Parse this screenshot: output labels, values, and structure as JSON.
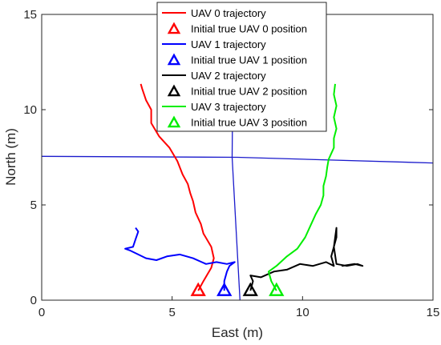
{
  "chart_data": {
    "type": "line",
    "xlabel": "East (m)",
    "ylabel": "North (m)",
    "xlim": [
      0,
      15
    ],
    "ylim": [
      0,
      15
    ],
    "x_ticks": [
      "0",
      "5",
      "10",
      "15"
    ],
    "y_ticks": [
      "0",
      "5",
      "10",
      "15"
    ],
    "legend_position": "top-center",
    "colors": {
      "uav0": "#ff0000",
      "uav1": "#0000ff",
      "uav2": "#000000",
      "uav3": "#00ee00",
      "boundary": "#1a1acc"
    },
    "legend": [
      "UAV 0 trajectory",
      "Initial true UAV 0 position",
      "UAV 1 trajectory",
      "Initial true UAV 1 position",
      "UAV 2 trajectory",
      "Initial true UAV 2 position",
      "UAV 3 trajectory",
      "Initial true UAV 3 position"
    ],
    "boundaries": [
      [
        [
          0,
          7.55
        ],
        [
          7.5,
          7.5
        ],
        [
          15,
          7.2
        ]
      ],
      [
        [
          7.35,
          15
        ],
        [
          7.3,
          7.5
        ],
        [
          7.6,
          0
        ]
      ]
    ],
    "series": [
      {
        "name": "UAV 0 trajectory",
        "initial_position_label": "Initial true UAV 0 position",
        "initial_position": [
          6.0,
          0.5
        ],
        "points": [
          [
            6.0,
            0.5
          ],
          [
            6.2,
            1.0
          ],
          [
            6.5,
            1.7
          ],
          [
            6.6,
            2.2
          ],
          [
            6.5,
            2.8
          ],
          [
            6.2,
            3.5
          ],
          [
            6.1,
            4.0
          ],
          [
            5.9,
            4.6
          ],
          [
            5.8,
            5.2
          ],
          [
            5.7,
            5.6
          ],
          [
            5.6,
            6.1
          ],
          [
            5.4,
            6.6
          ],
          [
            5.2,
            7.3
          ],
          [
            4.9,
            8.0
          ],
          [
            4.5,
            8.6
          ],
          [
            4.2,
            9.3
          ],
          [
            4.2,
            10.0
          ],
          [
            4.0,
            10.5
          ],
          [
            3.85,
            11.1
          ],
          [
            3.8,
            11.35
          ]
        ]
      },
      {
        "name": "UAV 1 trajectory",
        "initial_position_label": "Initial true UAV 1 position",
        "initial_position": [
          7.0,
          0.5
        ],
        "points": [
          [
            7.0,
            0.5
          ],
          [
            7.0,
            1.0
          ],
          [
            7.1,
            1.5
          ],
          [
            7.2,
            1.8
          ],
          [
            7.4,
            2.0
          ],
          [
            7.1,
            1.9
          ],
          [
            6.7,
            2.0
          ],
          [
            6.3,
            1.9
          ],
          [
            5.8,
            2.2
          ],
          [
            5.3,
            2.4
          ],
          [
            4.8,
            2.3
          ],
          [
            4.4,
            2.1
          ],
          [
            4.0,
            2.2
          ],
          [
            3.7,
            2.4
          ],
          [
            3.4,
            2.6
          ],
          [
            3.2,
            2.7
          ],
          [
            3.5,
            2.8
          ],
          [
            3.6,
            3.2
          ],
          [
            3.7,
            3.6
          ],
          [
            3.6,
            3.8
          ]
        ]
      },
      {
        "name": "UAV 2 trajectory",
        "initial_position_label": "Initial true UAV 2 position",
        "initial_position": [
          8.0,
          0.5
        ],
        "points": [
          [
            8.0,
            0.5
          ],
          [
            8.1,
            1.0
          ],
          [
            8.0,
            1.3
          ],
          [
            8.4,
            1.2
          ],
          [
            8.9,
            1.5
          ],
          [
            9.4,
            1.6
          ],
          [
            9.9,
            1.9
          ],
          [
            10.4,
            1.8
          ],
          [
            10.9,
            2.0
          ],
          [
            11.2,
            1.8
          ],
          [
            11.1,
            2.3
          ],
          [
            11.2,
            2.8
          ],
          [
            11.3,
            3.3
          ],
          [
            11.3,
            3.8
          ],
          [
            11.2,
            2.8
          ],
          [
            11.3,
            1.9
          ],
          [
            11.7,
            1.8
          ],
          [
            12.1,
            1.9
          ],
          [
            12.3,
            1.8
          ],
          [
            12.0,
            1.9
          ],
          [
            11.5,
            1.8
          ]
        ]
      },
      {
        "name": "UAV 3 trajectory",
        "initial_position_label": "Initial true UAV 3 position",
        "initial_position": [
          9.0,
          0.5
        ],
        "points": [
          [
            9.0,
            0.5
          ],
          [
            8.8,
            1.0
          ],
          [
            8.7,
            1.5
          ],
          [
            9.0,
            1.8
          ],
          [
            9.4,
            2.3
          ],
          [
            9.8,
            2.7
          ],
          [
            10.1,
            3.3
          ],
          [
            10.3,
            3.9
          ],
          [
            10.5,
            4.5
          ],
          [
            10.7,
            5.0
          ],
          [
            10.8,
            5.5
          ],
          [
            10.8,
            6.0
          ],
          [
            10.9,
            6.5
          ],
          [
            10.95,
            7.0
          ],
          [
            11.0,
            7.4
          ],
          [
            11.2,
            8.0
          ],
          [
            11.2,
            8.5
          ],
          [
            11.3,
            9.0
          ],
          [
            11.2,
            9.6
          ],
          [
            11.3,
            10.2
          ],
          [
            11.2,
            10.8
          ],
          [
            11.25,
            11.35
          ]
        ]
      }
    ]
  }
}
